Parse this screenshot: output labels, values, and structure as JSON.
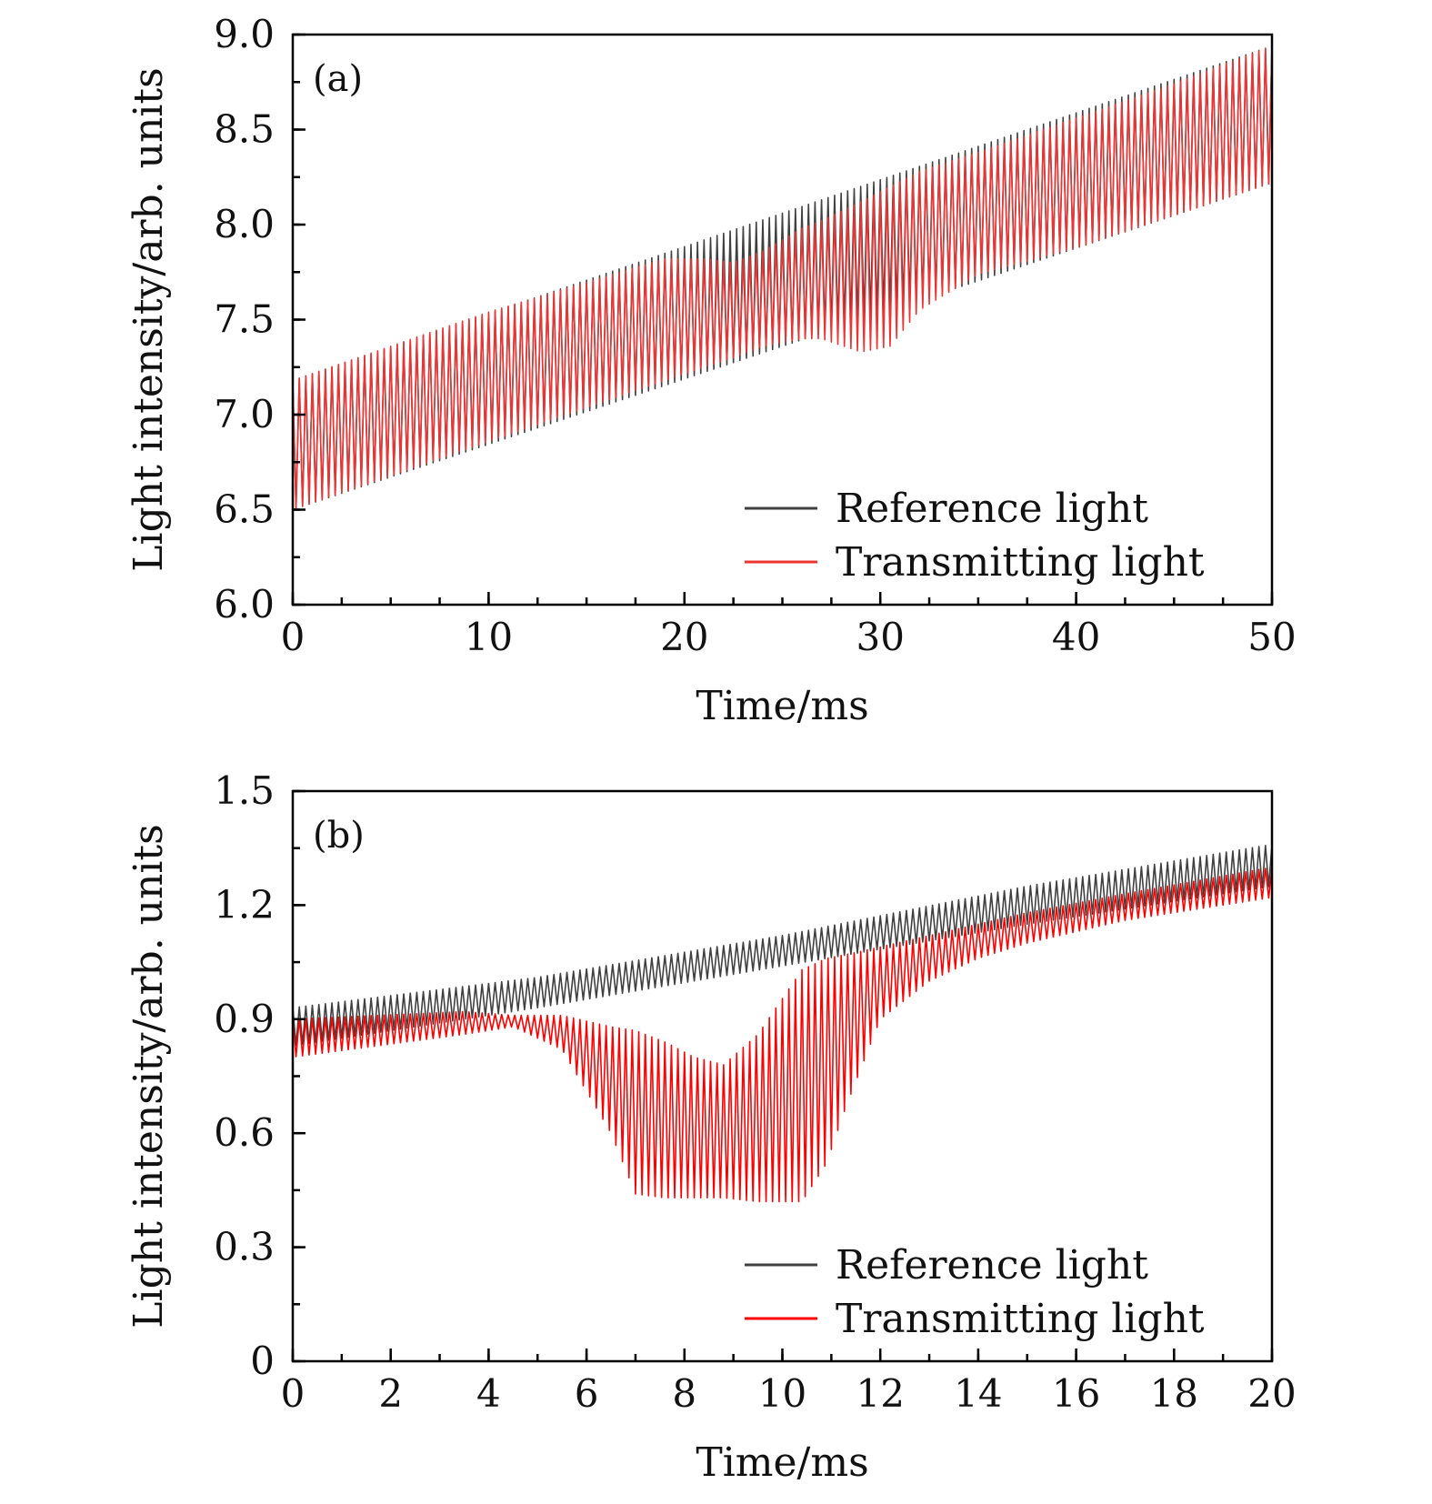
{
  "chart_data": [
    {
      "panel_label": "(a)",
      "type": "line",
      "xlabel": "Time/ms",
      "ylabel": "Light intensity/arb. units",
      "xlim": [
        0,
        50
      ],
      "ylim": [
        6.0,
        9.0
      ],
      "x_ticks": [
        0,
        10,
        20,
        30,
        40,
        50
      ],
      "x_tick_labels": [
        "0",
        "10",
        "20",
        "30",
        "40",
        "50"
      ],
      "y_ticks": [
        6.0,
        6.5,
        7.0,
        7.5,
        8.0,
        8.5,
        9.0
      ],
      "y_tick_labels": [
        "6.0",
        "6.5",
        "7.0",
        "7.5",
        "8.0",
        "8.5",
        "9.0"
      ],
      "x_minor_step": 2.5,
      "y_minor_step": 0.25,
      "legend_position": "bottom-right",
      "series": [
        {
          "name": "Reference light",
          "color": "#404040",
          "cycles": 150,
          "envelope": {
            "x": [
              0,
              50
            ],
            "upper": [
              7.18,
              8.94
            ],
            "lower": [
              6.5,
              8.22
            ]
          }
        },
        {
          "name": "Transmitting light",
          "color": "#ee3333",
          "cycles": 150,
          "envelope": {
            "x": [
              0,
              10,
              19,
              21,
              22.5,
              24,
              26,
              27,
              29,
              30.5,
              32,
              35,
              40,
              45,
              50
            ],
            "upper": [
              7.18,
              7.54,
              7.82,
              7.82,
              7.8,
              7.86,
              7.98,
              8.02,
              8.12,
              8.2,
              8.28,
              8.38,
              8.56,
              8.74,
              8.94
            ],
            "lower": [
              6.5,
              6.86,
              7.18,
              7.25,
              7.3,
              7.36,
              7.4,
              7.4,
              7.33,
              7.36,
              7.55,
              7.74,
              7.88,
              8.05,
              8.22
            ]
          }
        }
      ]
    },
    {
      "panel_label": "(b)",
      "type": "line",
      "xlabel": "Time/ms",
      "ylabel": "Light intensity/arb. units",
      "xlim": [
        0,
        20
      ],
      "ylim": [
        0,
        1.5
      ],
      "x_ticks": [
        0,
        2,
        4,
        6,
        8,
        10,
        12,
        14,
        16,
        18,
        20
      ],
      "x_tick_labels": [
        "0",
        "2",
        "4",
        "6",
        "8",
        "10",
        "12",
        "14",
        "16",
        "18",
        "20"
      ],
      "y_ticks": [
        0,
        0.3,
        0.6,
        0.9,
        1.2,
        1.5
      ],
      "y_tick_labels": [
        "0",
        "0.3",
        "0.6",
        "0.9",
        "1.2",
        "1.5"
      ],
      "x_minor_step": 1,
      "y_minor_step": 0.15,
      "legend_position": "bottom-right",
      "series": [
        {
          "name": "Reference light",
          "color": "#404040",
          "cycles": 150,
          "envelope": {
            "x": [
              0,
              5,
              10,
              15,
              20
            ],
            "upper": [
              0.93,
              1.01,
              1.12,
              1.25,
              1.36
            ],
            "lower": [
              0.83,
              0.93,
              1.04,
              1.15,
              1.25
            ]
          }
        },
        {
          "name": "Transmitting light",
          "color": "#ff0000",
          "cycles": 150,
          "envelope": {
            "x": [
              0,
              3.5,
              4.5,
              5.5,
              6.5,
              7.0,
              7.6,
              8.2,
              8.8,
              9.5,
              10.4,
              10.9,
              11.3,
              12,
              13,
              14,
              15,
              17,
              20
            ],
            "upper": [
              0.9,
              0.92,
              0.91,
              0.91,
              0.88,
              0.87,
              0.84,
              0.8,
              0.78,
              0.86,
              1.03,
              1.06,
              1.07,
              1.09,
              1.12,
              1.15,
              1.18,
              1.23,
              1.3
            ],
            "lower": [
              0.8,
              0.86,
              0.88,
              0.82,
              0.6,
              0.44,
              0.43,
              0.43,
              0.43,
              0.42,
              0.42,
              0.52,
              0.67,
              0.9,
              1.0,
              1.06,
              1.1,
              1.16,
              1.22
            ]
          }
        }
      ]
    }
  ]
}
